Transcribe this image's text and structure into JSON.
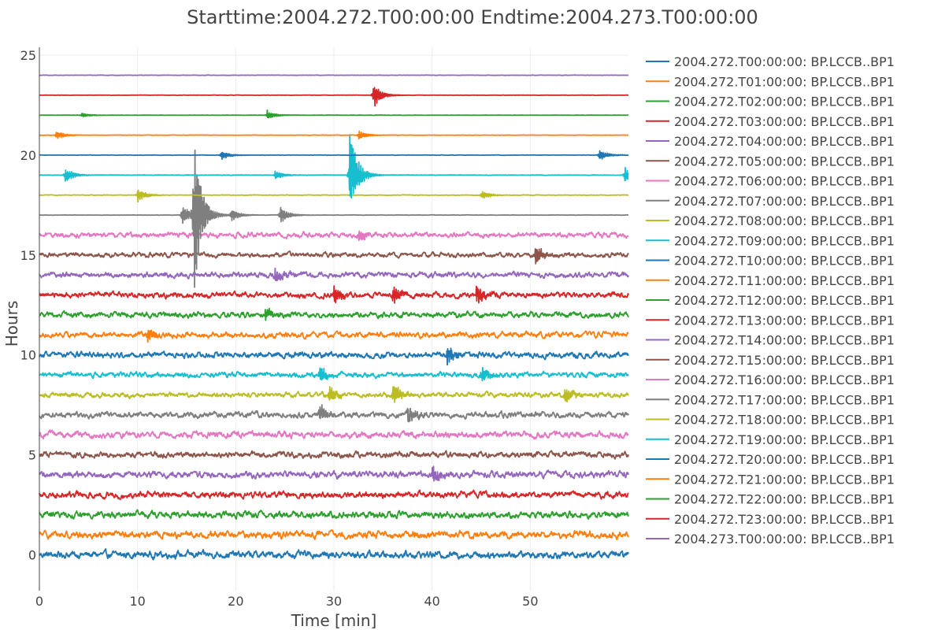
{
  "chart_data": {
    "type": "line",
    "title": "Starttime:2004.272.T00:00:00 Endtime:2004.273.T00:00:00",
    "xlabel": "Time [min]",
    "ylabel": "Hours",
    "xlim": [
      0,
      60
    ],
    "ylim": [
      -1.8,
      25.4
    ],
    "xticks": [
      0,
      10,
      20,
      30,
      40,
      50
    ],
    "yticks": [
      0,
      5,
      10,
      15,
      20,
      25
    ],
    "grid": true,
    "legend_position": "right",
    "series": [
      {
        "name": "2004.272.T00:00:00: BP.LCCB..BP1",
        "offset": 0,
        "color": "#1f77b4",
        "noise": 0.22,
        "events": []
      },
      {
        "name": "2004.272.T01:00:00: BP.LCCB..BP1",
        "offset": 1,
        "color": "#ff7f0e",
        "noise": 0.22,
        "events": []
      },
      {
        "name": "2004.272.T02:00:00: BP.LCCB..BP1",
        "offset": 2,
        "color": "#2ca02c",
        "noise": 0.2,
        "events": []
      },
      {
        "name": "2004.272.T03:00:00: BP.LCCB..BP1",
        "offset": 3,
        "color": "#d62728",
        "noise": 0.2,
        "events": []
      },
      {
        "name": "2004.272.T04:00:00: BP.LCCB..BP1",
        "offset": 4,
        "color": "#9467bd",
        "noise": 0.2,
        "events": [
          {
            "t": 40,
            "amp": 0.4
          }
        ]
      },
      {
        "name": "2004.272.T05:00:00: BP.LCCB..BP1",
        "offset": 5,
        "color": "#8c564b",
        "noise": 0.18,
        "events": []
      },
      {
        "name": "2004.272.T06:00:00: BP.LCCB..BP1",
        "offset": 6,
        "color": "#e377c2",
        "noise": 0.2,
        "events": []
      },
      {
        "name": "2004.272.T07:00:00: BP.LCCB..BP1",
        "offset": 7,
        "color": "#7f7f7f",
        "noise": 0.18,
        "events": [
          {
            "t": 28.5,
            "amp": 0.4
          },
          {
            "t": 37.5,
            "amp": 0.4
          }
        ]
      },
      {
        "name": "2004.272.T08:00:00: BP.LCCB..BP1",
        "offset": 8,
        "color": "#bcbd22",
        "noise": 0.15,
        "events": [
          {
            "t": 29.5,
            "amp": 0.4
          },
          {
            "t": 36,
            "amp": 0.5
          },
          {
            "t": 53.5,
            "amp": 0.4
          }
        ]
      },
      {
        "name": "2004.272.T09:00:00: BP.LCCB..BP1",
        "offset": 9,
        "color": "#17becf",
        "noise": 0.16,
        "events": [
          {
            "t": 28.5,
            "amp": 0.4
          },
          {
            "t": 45,
            "amp": 0.4
          }
        ]
      },
      {
        "name": "2004.272.T10:00:00: BP.LCCB..BP1",
        "offset": 10,
        "color": "#1f77b4",
        "noise": 0.18,
        "events": [
          {
            "t": 41.5,
            "amp": 0.4
          }
        ]
      },
      {
        "name": "2004.272.T11:00:00: BP.LCCB..BP1",
        "offset": 11,
        "color": "#ff7f0e",
        "noise": 0.17,
        "events": [
          {
            "t": 11,
            "amp": 0.3
          }
        ]
      },
      {
        "name": "2004.272.T12:00:00: BP.LCCB..BP1",
        "offset": 12,
        "color": "#2ca02c",
        "noise": 0.17,
        "events": [
          {
            "t": 23,
            "amp": 0.3
          }
        ]
      },
      {
        "name": "2004.272.T13:00:00: BP.LCCB..BP1",
        "offset": 13,
        "color": "#d62728",
        "noise": 0.17,
        "events": [
          {
            "t": 30,
            "amp": 0.4
          },
          {
            "t": 36,
            "amp": 0.4
          },
          {
            "t": 44.5,
            "amp": 0.4
          }
        ]
      },
      {
        "name": "2004.272.T14:00:00: BP.LCCB..BP1",
        "offset": 14,
        "color": "#9467bd",
        "noise": 0.17,
        "events": [
          {
            "t": 24,
            "amp": 0.3
          }
        ]
      },
      {
        "name": "2004.272.T15:00:00: BP.LCCB..BP1",
        "offset": 15,
        "color": "#8c564b",
        "noise": 0.14,
        "events": [
          {
            "t": 50.5,
            "amp": 0.4
          }
        ]
      },
      {
        "name": "2004.272.T16:00:00: BP.LCCB..BP1",
        "offset": 16,
        "color": "#e377c2",
        "noise": 0.16,
        "events": [
          {
            "t": 32.5,
            "amp": 0.3
          }
        ]
      },
      {
        "name": "2004.272.T17:00:00: BP.LCCB..BP1",
        "offset": 17,
        "color": "#7f7f7f",
        "noise": 0.01,
        "events": [
          {
            "t": 14.5,
            "amp": 0.5
          },
          {
            "t": 15.7,
            "amp": 4.0
          },
          {
            "t": 17,
            "amp": 0.5
          },
          {
            "t": 19.5,
            "amp": 0.3
          },
          {
            "t": 24.5,
            "amp": 0.4
          }
        ]
      },
      {
        "name": "2004.272.T18:00:00: BP.LCCB..BP1",
        "offset": 18,
        "color": "#bcbd22",
        "noise": 0.02,
        "events": [
          {
            "t": 10,
            "amp": 0.3
          },
          {
            "t": 45,
            "amp": 0.2
          }
        ]
      },
      {
        "name": "2004.272.T19:00:00: BP.LCCB..BP1",
        "offset": 19,
        "color": "#17becf",
        "noise": 0.015,
        "events": [
          {
            "t": 2.6,
            "amp": 0.35
          },
          {
            "t": 24,
            "amp": 0.2
          },
          {
            "t": 31.6,
            "amp": 2.0
          },
          {
            "t": 59.6,
            "amp": 0.4
          }
        ]
      },
      {
        "name": "2004.272.T20:00:00: BP.LCCB..BP1",
        "offset": 20,
        "color": "#1f77b4",
        "noise": 0.01,
        "events": [
          {
            "t": 18.5,
            "amp": 0.2
          },
          {
            "t": 57,
            "amp": 0.25
          }
        ]
      },
      {
        "name": "2004.272.T21:00:00: BP.LCCB..BP1",
        "offset": 21,
        "color": "#ff7f0e",
        "noise": 0.01,
        "events": [
          {
            "t": 1.7,
            "amp": 0.2
          },
          {
            "t": 32.5,
            "amp": 0.2
          }
        ]
      },
      {
        "name": "2004.272.T22:00:00: BP.LCCB..BP1",
        "offset": 22,
        "color": "#2ca02c",
        "noise": 0.01,
        "events": [
          {
            "t": 4.3,
            "amp": 0.1
          },
          {
            "t": 23.2,
            "amp": 0.2
          }
        ]
      },
      {
        "name": "2004.272.T23:00:00: BP.LCCB..BP1",
        "offset": 23,
        "color": "#d62728",
        "noise": 0.01,
        "events": [
          {
            "t": 34,
            "amp": 0.55
          }
        ]
      },
      {
        "name": "2004.273.T00:00:00: BP.LCCB..BP1",
        "offset": 24,
        "color": "#9467bd",
        "noise": 0.01,
        "events": []
      }
    ]
  }
}
